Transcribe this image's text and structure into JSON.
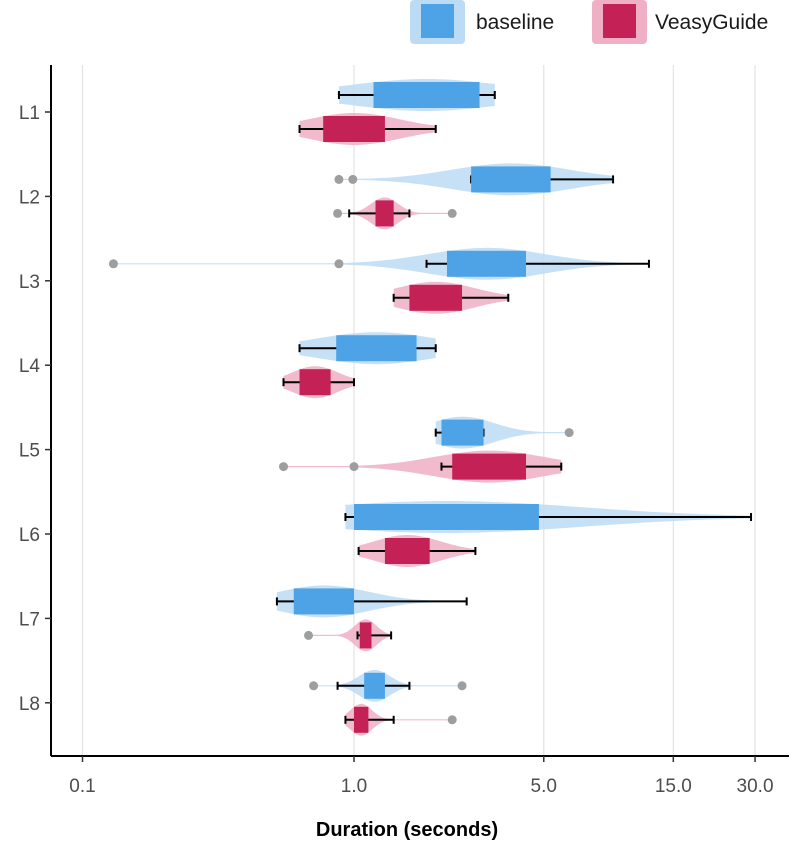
{
  "chart_data": {
    "type": "box-violin",
    "orientation": "horizontal",
    "xscale": "log",
    "xlabel": "Duration (seconds)",
    "xlim": [
      0.075,
      40
    ],
    "xticks": [
      0.1,
      1.0,
      5.0,
      15.0,
      30.0
    ],
    "xtick_labels": [
      "0.1",
      "1.0",
      "5.0",
      "15.0",
      "30.0"
    ],
    "grid": true,
    "legend_position": "top-right",
    "categories": [
      "L1",
      "L2",
      "L3",
      "L4",
      "L5",
      "L6",
      "L7",
      "L8"
    ],
    "series": [
      {
        "name": "baseline",
        "color": "#4EA3E6",
        "violin_color": "#BCDCF5",
        "data": [
          {
            "whisker_low": 0.88,
            "q1": 1.18,
            "q3": 2.9,
            "whisker_high": 3.3,
            "outliers": []
          },
          {
            "whisker_low": 2.7,
            "q1": 2.7,
            "q3": 5.3,
            "whisker_high": 9.0,
            "outliers": [
              0.88,
              0.99
            ]
          },
          {
            "whisker_low": 1.85,
            "q1": 2.2,
            "q3": 4.3,
            "whisker_high": 12.2,
            "outliers": [
              0.13,
              0.88
            ]
          },
          {
            "whisker_low": 0.63,
            "q1": 0.86,
            "q3": 1.7,
            "whisker_high": 2.0,
            "outliers": []
          },
          {
            "whisker_low": 2.0,
            "q1": 2.1,
            "q3": 3.0,
            "whisker_high": 3.0,
            "outliers": [
              6.2
            ]
          },
          {
            "whisker_low": 0.93,
            "q1": 1.0,
            "q3": 4.8,
            "whisker_high": 29.0,
            "outliers": []
          },
          {
            "whisker_low": 0.52,
            "q1": 0.6,
            "q3": 1.0,
            "whisker_high": 2.6,
            "outliers": []
          },
          {
            "whisker_low": 0.87,
            "q1": 1.09,
            "q3": 1.3,
            "whisker_high": 1.6,
            "outliers": [
              0.71,
              2.5
            ]
          }
        ]
      },
      {
        "name": "VeasyGuide",
        "color": "#C42257",
        "violin_color": "#EFAFC4",
        "data": [
          {
            "whisker_low": 0.63,
            "q1": 0.77,
            "q3": 1.3,
            "whisker_high": 2.0,
            "outliers": []
          },
          {
            "whisker_low": 0.96,
            "q1": 1.2,
            "q3": 1.4,
            "whisker_high": 1.6,
            "outliers": [
              0.87,
              2.3
            ]
          },
          {
            "whisker_low": 1.4,
            "q1": 1.6,
            "q3": 2.5,
            "whisker_high": 3.7,
            "outliers": []
          },
          {
            "whisker_low": 0.55,
            "q1": 0.63,
            "q3": 0.82,
            "whisker_high": 1.0,
            "outliers": []
          },
          {
            "whisker_low": 2.1,
            "q1": 2.3,
            "q3": 4.3,
            "whisker_high": 5.8,
            "outliers": [
              0.55,
              1.0
            ]
          },
          {
            "whisker_low": 1.04,
            "q1": 1.3,
            "q3": 1.9,
            "whisker_high": 2.8,
            "outliers": []
          },
          {
            "whisker_low": 1.03,
            "q1": 1.05,
            "q3": 1.16,
            "whisker_high": 1.37,
            "outliers": [
              0.68
            ]
          },
          {
            "whisker_low": 0.93,
            "q1": 1.0,
            "q3": 1.13,
            "whisker_high": 1.4,
            "outliers": [
              2.3
            ]
          }
        ]
      }
    ]
  }
}
